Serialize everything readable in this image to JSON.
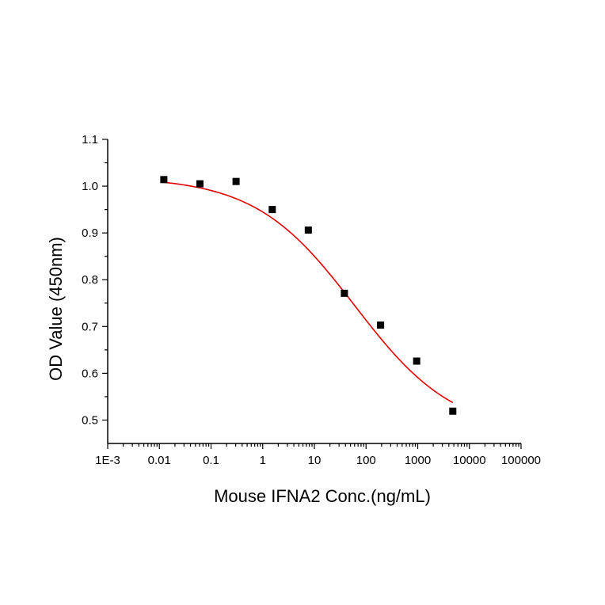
{
  "chart_data": {
    "type": "scatter",
    "title": "",
    "xlabel": "Mouse IFNA2 Conc.(ng/mL)",
    "ylabel": "OD Value (450nm)",
    "x_scale": "log",
    "xlim": [
      0.001,
      100000
    ],
    "ylim": [
      0.45,
      1.1
    ],
    "x_ticks": [
      0.001,
      0.01,
      0.1,
      1,
      10,
      100,
      1000,
      10000,
      100000
    ],
    "x_tick_labels": [
      "1E-3",
      "0.01",
      "0.1",
      "1",
      "10",
      "100",
      "1000",
      "10000",
      "100000"
    ],
    "y_ticks": [
      0.5,
      0.6,
      0.7,
      0.8,
      0.9,
      1.0,
      1.1
    ],
    "y_tick_labels": [
      "0.5",
      "0.6",
      "0.7",
      "0.8",
      "0.9",
      "1.0",
      "1.1"
    ],
    "grid": false,
    "legend": "none",
    "series": [
      {
        "kind": "points",
        "marker": "square",
        "color": "#000000",
        "x": [
          0.0122,
          0.061,
          0.305,
          1.53,
          7.63,
          38.1,
          191,
          954,
          4770
        ],
        "y": [
          1.014,
          1.005,
          1.01,
          0.95,
          0.906,
          0.771,
          0.703,
          0.626,
          0.519
        ]
      },
      {
        "kind": "fit",
        "model": "four-parameter-logistic",
        "color": "#e00000",
        "x_range": [
          0.0122,
          4770
        ],
        "params": {
          "top": 1.02,
          "bottom": 0.47,
          "ec50": 60,
          "hill": 0.45
        }
      }
    ]
  }
}
